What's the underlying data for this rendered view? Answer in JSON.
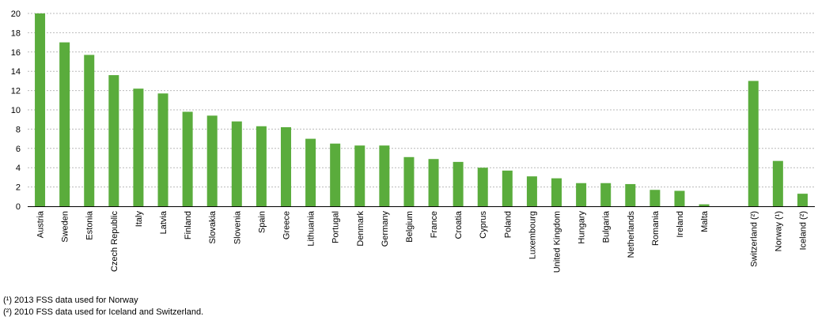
{
  "chart_data": {
    "type": "bar",
    "categories": [
      "Austria",
      "Sweden",
      "Estonia",
      "Czech Republic",
      "Italy",
      "Latvia",
      "Finland",
      "Slovakia",
      "Slovenia",
      "Spain",
      "Greece",
      "Lithuania",
      "Portugal",
      "Denmark",
      "Germany",
      "Belgium",
      "France",
      "Croatia",
      "Cyprus",
      "Poland",
      "Luxembourg",
      "United Kingdom",
      "Hungary",
      "Bulgaria",
      "Netherlands",
      "Romania",
      "Ireland",
      "Malta",
      "",
      "Switzerland (²)",
      "Norway (¹)",
      "Iceland (²)"
    ],
    "values": [
      20.0,
      17.0,
      15.7,
      13.6,
      12.2,
      11.7,
      9.8,
      9.4,
      8.8,
      8.3,
      8.2,
      7.0,
      6.5,
      6.3,
      6.3,
      5.1,
      4.9,
      4.6,
      4.0,
      3.7,
      3.1,
      2.9,
      2.4,
      2.4,
      2.3,
      1.7,
      1.6,
      0.2,
      null,
      13.0,
      4.7,
      1.3
    ],
    "ylim": [
      0,
      20
    ],
    "yticks": [
      0,
      2,
      4,
      6,
      8,
      10,
      12,
      14,
      16,
      18,
      20
    ],
    "grid": true,
    "bar_color": "#5aac3c",
    "grid_color": "#b9b9b9",
    "title": "",
    "xlabel": "",
    "ylabel": ""
  },
  "footnotes": [
    "(¹) 2013 FSS data used for Norway",
    "(²) 2010 FSS data used for Iceland and Switzerland."
  ]
}
